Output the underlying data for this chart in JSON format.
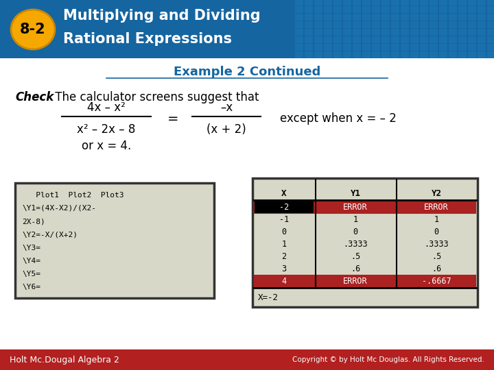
{
  "title_line1": "Multiplying and Dividing",
  "title_line2": "Rational Expressions",
  "badge_text": "8-2",
  "section_title": "Example 2 Continued",
  "check_bold": "Check",
  "check_normal": " The calculator screens suggest that",
  "frac1_num": "4x – x²",
  "frac1_den": "x² – 2x – 8",
  "frac2_num": "–x",
  "frac2_den": "(x + 2)",
  "except_text": "except when x = – 2",
  "or_text": "or x = 4.",
  "header_bg": "#1565a0",
  "tile_color": "#1e7ab8",
  "badge_bg": "#f5a800",
  "badge_text_color": "#000000",
  "title_text_color": "#ffffff",
  "section_title_color": "#1565a0",
  "body_bg": "#ffffff",
  "footer_bg": "#b22020",
  "footer_text1": "Holt Mc.Dougal Algebra 2",
  "footer_text2": "Copyright © by Holt Mc Douglas. All Rights Reserved.",
  "calc_screen_bg": "#d8d8c8",
  "calc_screen_border": "#333333",
  "calc1_lines": [
    "   Plot1  Plot2  Plot3",
    "\\Y1=(4X-X2)/(X2-",
    "2X-8)",
    "\\Y2=-X/(X+2)",
    "\\Y3=",
    "\\Y4=",
    "\\Y5=",
    "\\Y6="
  ],
  "calc2_headers": [
    "X",
    "Y1",
    "Y2"
  ],
  "calc2_rows": [
    [
      "-2",
      "ERROR",
      "ERROR"
    ],
    [
      "-1",
      "1",
      "1"
    ],
    [
      "0",
      "0",
      "0"
    ],
    [
      "1",
      ".3333",
      ".3333"
    ],
    [
      "2",
      ".5",
      ".5"
    ],
    [
      "3",
      ".6",
      ".6"
    ],
    [
      "4",
      "ERROR",
      "-.6667"
    ]
  ],
  "calc2_footer": "X=-2",
  "highlight_rows": [
    0,
    6
  ],
  "highlight_color": "#aa2222",
  "highlight_x_color": "#000000"
}
